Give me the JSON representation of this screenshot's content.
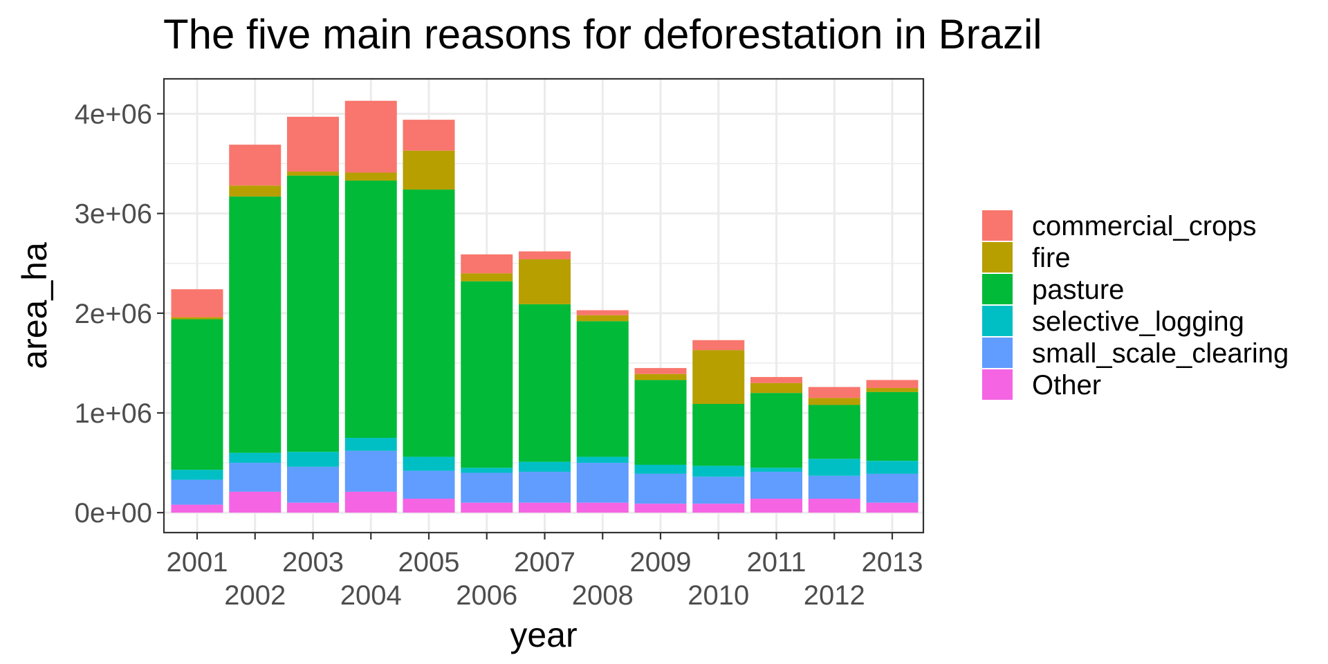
{
  "chart_data": {
    "type": "bar",
    "stacked": true,
    "title": "The five main reasons for deforestation in Brazil",
    "xlabel": "year",
    "ylabel": "area_ha",
    "ylim": [
      -200000,
      4350000
    ],
    "yticks": [
      0,
      1000000,
      2000000,
      3000000,
      4000000
    ],
    "ytick_labels": [
      "0e+00",
      "1e+06",
      "2e+06",
      "3e+06",
      "4e+06"
    ],
    "grid": true,
    "legend_position": "right",
    "categories": [
      "2001",
      "2002",
      "2003",
      "2004",
      "2005",
      "2006",
      "2007",
      "2008",
      "2009",
      "2010",
      "2011",
      "2012",
      "2013"
    ],
    "series": [
      {
        "name": "Other",
        "color": "#F564E3",
        "values": [
          80000,
          210000,
          100000,
          210000,
          140000,
          100000,
          100000,
          100000,
          90000,
          90000,
          140000,
          140000,
          100000
        ]
      },
      {
        "name": "small_scale_clearing",
        "color": "#619CFF",
        "values": [
          250000,
          290000,
          360000,
          410000,
          280000,
          300000,
          310000,
          400000,
          300000,
          270000,
          270000,
          230000,
          290000
        ]
      },
      {
        "name": "selective_logging",
        "color": "#00BFC4",
        "values": [
          100000,
          100000,
          150000,
          130000,
          140000,
          50000,
          100000,
          60000,
          90000,
          110000,
          40000,
          170000,
          130000
        ]
      },
      {
        "name": "pasture",
        "color": "#00BA38",
        "values": [
          1510000,
          2570000,
          2770000,
          2580000,
          2680000,
          1870000,
          1580000,
          1360000,
          850000,
          620000,
          750000,
          540000,
          690000
        ]
      },
      {
        "name": "fire",
        "color": "#B79F00",
        "values": [
          20000,
          110000,
          40000,
          80000,
          390000,
          80000,
          450000,
          60000,
          60000,
          540000,
          100000,
          70000,
          40000
        ]
      },
      {
        "name": "commercial_crops",
        "color": "#F8766D",
        "values": [
          280000,
          410000,
          550000,
          720000,
          310000,
          190000,
          80000,
          50000,
          60000,
          100000,
          60000,
          110000,
          80000
        ]
      }
    ],
    "legend_order": [
      "commercial_crops",
      "fire",
      "pasture",
      "selective_logging",
      "small_scale_clearing",
      "Other"
    ]
  }
}
